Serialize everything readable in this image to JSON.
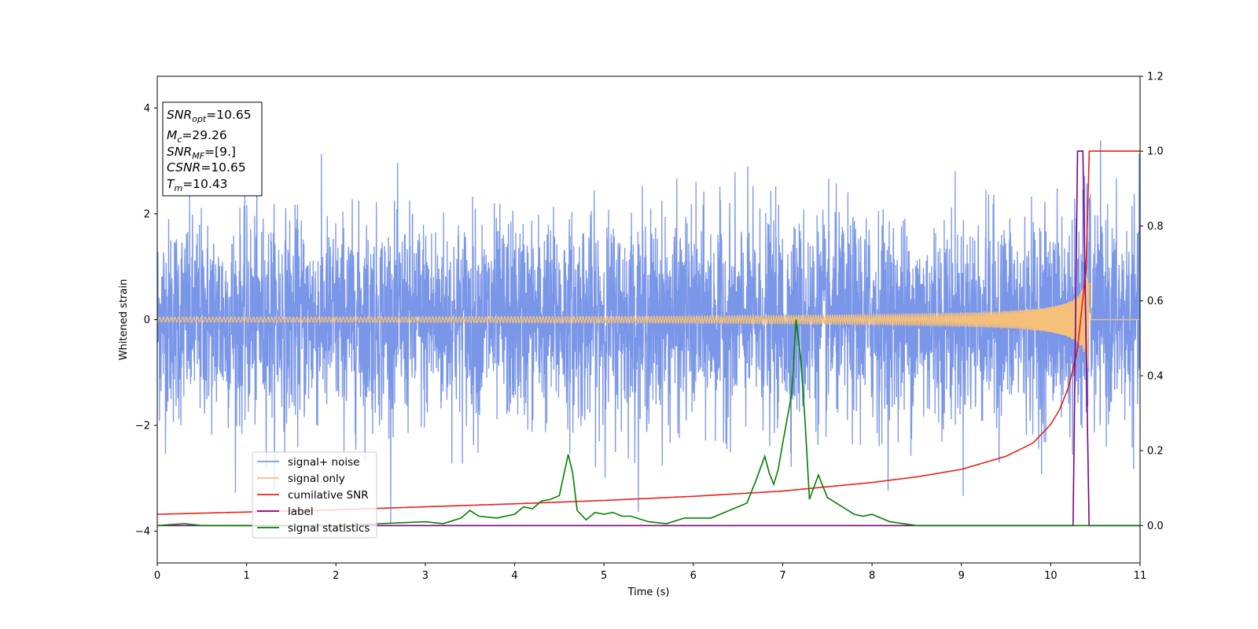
{
  "chart_data": {
    "type": "line",
    "xlabel": "Time (s)",
    "ylabel_left": "Whitened strain",
    "xlim": [
      0,
      11
    ],
    "ylim_left": [
      -4.6,
      4.6
    ],
    "ylim_right": [
      -0.1,
      1.2
    ],
    "x_ticks": [
      0,
      1,
      2,
      3,
      4,
      5,
      6,
      7,
      8,
      9,
      10,
      11
    ],
    "y_ticks_left": [
      -4,
      -2,
      0,
      2,
      4
    ],
    "y_ticks_right": [
      0.0,
      0.2,
      0.4,
      0.6,
      0.8,
      1.0,
      1.2
    ],
    "legend_position": "lower-left",
    "annotation": [
      {
        "var": "SNR",
        "sub": "opt",
        "value": "=10.65"
      },
      {
        "var": "M",
        "sub": "c",
        "value": "=29.26"
      },
      {
        "var": "SNR",
        "sub": "MF",
        "value": "=[9.]"
      },
      {
        "var": "CSNR",
        "sub": "",
        "value": "=10.65"
      },
      {
        "var": "T",
        "sub": "m",
        "value": "=10.43"
      }
    ],
    "series": [
      {
        "name": "signal+ noise",
        "axis": "left",
        "color": "#7a96e8",
        "description_values": "whitened noise, amplitude about ±2 to ±3.5 across 0–11 s"
      },
      {
        "name": "signal only",
        "axis": "left",
        "color": "#f5c07a",
        "chirp": {
          "start": 0,
          "merger": 10.43,
          "amp_start": 0.01,
          "amp_peak": 1.2
        }
      },
      {
        "name": "cumilative SNR",
        "axis": "right",
        "color": "#e8201a",
        "x": [
          0,
          1,
          2,
          3,
          4,
          5,
          6,
          7,
          8,
          8.5,
          9,
          9.5,
          9.8,
          10,
          10.1,
          10.2,
          10.3,
          10.4,
          10.43,
          11
        ],
        "y": [
          0.03,
          0.036,
          0.042,
          0.05,
          0.058,
          0.067,
          0.078,
          0.092,
          0.115,
          0.13,
          0.15,
          0.185,
          0.22,
          0.27,
          0.31,
          0.37,
          0.47,
          0.7,
          1.0,
          1.0
        ]
      },
      {
        "name": "label",
        "axis": "right",
        "color": "#800080",
        "x": [
          0,
          10.25,
          10.3,
          10.36,
          10.43,
          10.46,
          11
        ],
        "y": [
          0,
          0,
          1.0,
          1.0,
          0,
          0,
          0
        ]
      },
      {
        "name": "signal statistics",
        "axis": "right",
        "color": "#008000",
        "x": [
          0,
          0.3,
          0.5,
          1,
          2,
          2.5,
          3,
          3.2,
          3.4,
          3.5,
          3.6,
          3.8,
          4,
          4.1,
          4.2,
          4.3,
          4.4,
          4.5,
          4.6,
          4.65,
          4.7,
          4.8,
          4.9,
          5,
          5.1,
          5.2,
          5.3,
          5.5,
          5.7,
          5.9,
          6.0,
          6.2,
          6.4,
          6.5,
          6.6,
          6.7,
          6.8,
          6.85,
          6.9,
          6.95,
          7.0,
          7.1,
          7.15,
          7.2,
          7.25,
          7.3,
          7.4,
          7.5,
          7.6,
          7.7,
          7.8,
          7.9,
          8.0,
          8.2,
          8.5,
          9.0,
          10.0,
          11.0
        ],
        "y": [
          0.0,
          0.005,
          0.0,
          0.0,
          0.0,
          0.005,
          0.01,
          0.005,
          0.02,
          0.04,
          0.025,
          0.02,
          0.03,
          0.05,
          0.045,
          0.065,
          0.07,
          0.08,
          0.19,
          0.14,
          0.04,
          0.015,
          0.035,
          0.03,
          0.035,
          0.025,
          0.025,
          0.01,
          0.005,
          0.02,
          0.02,
          0.02,
          0.04,
          0.05,
          0.06,
          0.12,
          0.185,
          0.14,
          0.11,
          0.15,
          0.22,
          0.35,
          0.55,
          0.45,
          0.28,
          0.07,
          0.135,
          0.075,
          0.06,
          0.045,
          0.03,
          0.025,
          0.03,
          0.01,
          0.0,
          0.0,
          0.0,
          0.0
        ]
      }
    ]
  }
}
